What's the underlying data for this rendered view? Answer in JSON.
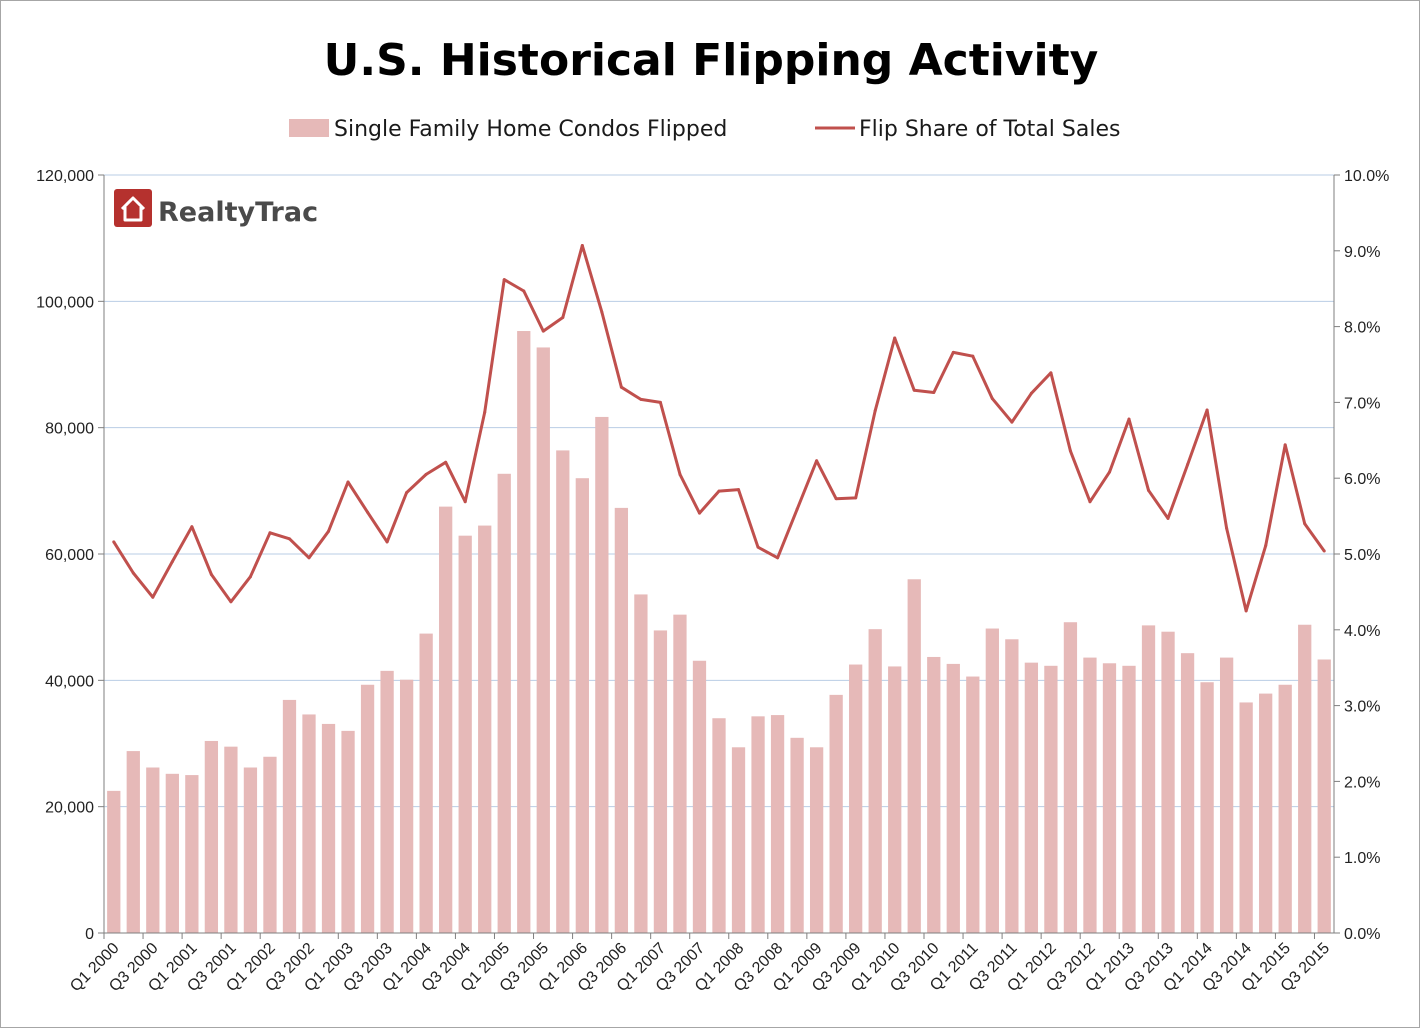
{
  "colors": {
    "bar": "#e6b9b8",
    "line": "#c0504d",
    "grid": "#b9cde5",
    "axis": "#7f7f7f",
    "logo_red": "#b5312e"
  },
  "logo": {
    "text": "RealtyTrac",
    "icon": "house-icon"
  },
  "chart_data": {
    "type": "bar",
    "title": "U.S. Historical Flipping Activity",
    "legend_position": "top",
    "grid": true,
    "categories": [
      "Q1 2000",
      "Q2 2000",
      "Q3 2000",
      "Q4 2000",
      "Q1 2001",
      "Q2 2001",
      "Q3 2001",
      "Q4 2001",
      "Q1 2002",
      "Q2 2002",
      "Q3 2002",
      "Q4 2002",
      "Q1 2003",
      "Q2 2003",
      "Q3 2003",
      "Q4 2003",
      "Q1 2004",
      "Q2 2004",
      "Q3 2004",
      "Q4 2004",
      "Q1 2005",
      "Q2 2005",
      "Q3 2005",
      "Q4 2005",
      "Q1 2006",
      "Q2 2006",
      "Q3 2006",
      "Q4 2006",
      "Q1 2007",
      "Q2 2007",
      "Q3 2007",
      "Q4 2007",
      "Q1 2008",
      "Q2 2008",
      "Q3 2008",
      "Q4 2008",
      "Q1 2009",
      "Q2 2009",
      "Q3 2009",
      "Q4 2009",
      "Q1 2010",
      "Q2 2010",
      "Q3 2010",
      "Q4 2010",
      "Q1 2011",
      "Q2 2011",
      "Q3 2011",
      "Q4 2011",
      "Q1 2012",
      "Q2 2012",
      "Q3 2012",
      "Q4 2012",
      "Q1 2013",
      "Q2 2013",
      "Q3 2013",
      "Q4 2013",
      "Q1 2014",
      "Q2 2014",
      "Q3 2014",
      "Q4 2014",
      "Q1 2015",
      "Q2 2015",
      "Q3 2015"
    ],
    "x_tick_labels": [
      "Q1 2000",
      "Q3 2000",
      "Q1 2001",
      "Q3 2001",
      "Q1 2002",
      "Q3 2002",
      "Q1 2003",
      "Q3 2003",
      "Q1 2004",
      "Q3 2004",
      "Q1 2005",
      "Q3 2005",
      "Q1 2006",
      "Q3 2006",
      "Q1 2007",
      "Q3 2007",
      "Q1 2008",
      "Q3 2008",
      "Q1 2009",
      "Q3 2009",
      "Q1 2010",
      "Q3 2010",
      "Q1 2011",
      "Q3 2011",
      "Q1 2012",
      "Q3 2012",
      "Q1 2013",
      "Q3 2013",
      "Q1 2014",
      "Q3 2014",
      "Q1 2015",
      "Q3 2015"
    ],
    "y_left": {
      "min": 0,
      "max": 120000,
      "ticks": [
        "0",
        "20,000",
        "40,000",
        "60,000",
        "80,000",
        "100,000",
        "120,000"
      ]
    },
    "y_right": {
      "min": 0,
      "max": 10,
      "ticks": [
        "0.0%",
        "1.0%",
        "2.0%",
        "3.0%",
        "4.0%",
        "5.0%",
        "6.0%",
        "7.0%",
        "8.0%",
        "9.0%",
        "10.0%"
      ]
    },
    "series": [
      {
        "name": "Single Family Home Condos Flipped",
        "kind": "bar",
        "axis": "left",
        "values": [
          22500,
          28800,
          26200,
          25200,
          25000,
          30400,
          29500,
          26200,
          27900,
          36900,
          34600,
          33100,
          32000,
          39300,
          41500,
          40100,
          47400,
          67500,
          62900,
          64500,
          72700,
          95300,
          92700,
          76400,
          72000,
          81700,
          67300,
          53600,
          47900,
          50400,
          43100,
          34000,
          29400,
          34300,
          34500,
          30900,
          29400,
          37700,
          42500,
          48100,
          42200,
          56000,
          43700,
          42600,
          40600,
          48200,
          46500,
          42800,
          42300,
          49200,
          43600,
          42700,
          42300,
          48700,
          47700,
          44300,
          39700,
          43600,
          36500,
          37900,
          39300,
          48800,
          43300
        ]
      },
      {
        "name": "Flip Share of Total Sales",
        "kind": "line",
        "axis": "right",
        "values": [
          5.16,
          4.75,
          4.43,
          4.9,
          5.36,
          4.73,
          4.37,
          4.7,
          5.28,
          5.2,
          4.95,
          5.3,
          5.95,
          5.55,
          5.16,
          5.81,
          6.05,
          6.21,
          5.69,
          6.87,
          8.62,
          8.47,
          7.94,
          8.12,
          9.07,
          8.19,
          7.2,
          7.04,
          7.0,
          6.05,
          5.54,
          5.83,
          5.85,
          5.09,
          4.95,
          5.59,
          6.23,
          5.73,
          5.74,
          6.89,
          7.85,
          7.16,
          7.13,
          7.66,
          7.61,
          7.05,
          6.74,
          7.12,
          7.39,
          6.36,
          5.69,
          6.08,
          6.78,
          5.84,
          5.47,
          6.18,
          6.9,
          5.34,
          4.25,
          5.11,
          6.44,
          5.4,
          5.04
        ]
      }
    ]
  }
}
